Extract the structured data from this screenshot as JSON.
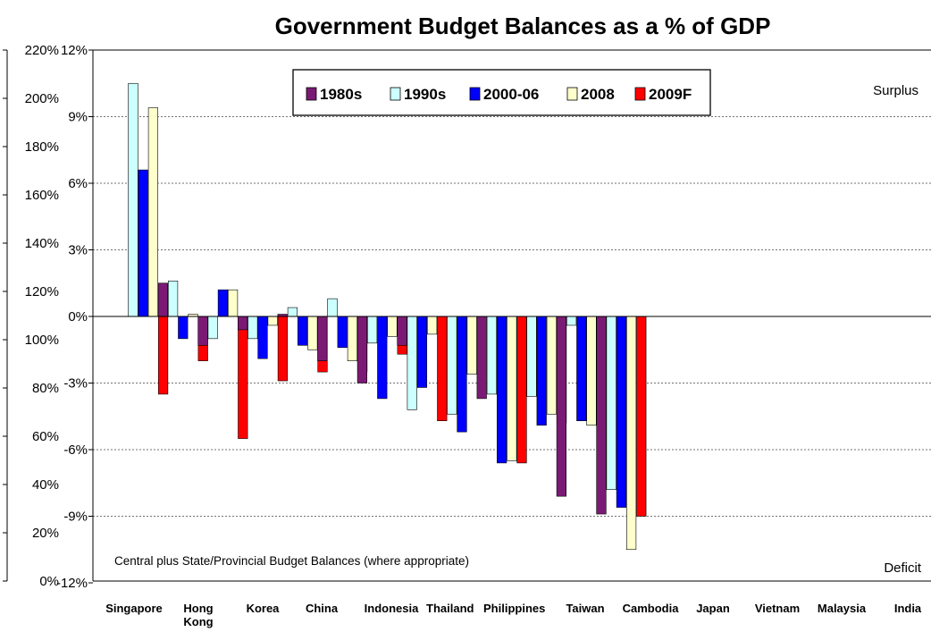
{
  "chart_data": {
    "type": "bar",
    "title": "Government Budget Balances as a % of GDP",
    "categories": [
      "Singapore",
      "Hong Kong",
      "Korea",
      "China",
      "Indonesia",
      "Thailand",
      "Philippines",
      "Taiwan",
      "Cambodia",
      "Japan",
      "Vietnam",
      "Malaysia",
      "India"
    ],
    "series": [
      {
        "name": "1980s",
        "color": "#7b1a74",
        "values": [
          0,
          1.5,
          -1.3,
          -0.6,
          0.1,
          -2.0,
          -3.0,
          -1.3,
          0,
          -3.7,
          0,
          -8.1,
          -8.9
        ]
      },
      {
        "name": "1990s",
        "color": "#ccffff",
        "values": [
          10.5,
          1.6,
          -1.0,
          -1.0,
          0.4,
          0.8,
          -1.2,
          -4.2,
          -4.4,
          -3.5,
          -3.6,
          -0.4,
          -7.8
        ]
      },
      {
        "name": "2000-06",
        "color": "#0000ff",
        "values": [
          6.6,
          -1.0,
          1.2,
          -1.9,
          -1.3,
          -1.4,
          -3.7,
          -3.2,
          -5.2,
          -6.6,
          -4.9,
          -4.7,
          -8.6
        ]
      },
      {
        "name": "2008",
        "color": "#ffffcc",
        "values": [
          9.4,
          0.1,
          1.2,
          -0.4,
          -1.5,
          -2.0,
          -0.9,
          -0.8,
          -2.6,
          -6.5,
          -4.4,
          -4.9,
          -10.5
        ]
      },
      {
        "name": "2009F",
        "color": "#ff0000",
        "values": [
          -3.5,
          -2.0,
          -5.5,
          -2.9,
          -2.5,
          -2.5,
          -1.7,
          -4.7,
          0,
          -6.6,
          -4.8,
          -7.7,
          -9.0
        ]
      }
    ],
    "ylim": [
      -12,
      12
    ],
    "y_ticks": [
      "-12%",
      "-9%",
      "-6%",
      "-3%",
      "0%",
      "3%",
      "6%",
      "9%",
      "12%"
    ],
    "left_axis_ticks": [
      "0%",
      "20%",
      "40%",
      "60%",
      "80%",
      "100%",
      "120%",
      "140%",
      "160%",
      "180%",
      "200%",
      "220%"
    ],
    "grid": true,
    "legend_position": "top-center",
    "annotations": {
      "surplus": "Surplus",
      "deficit": "Deficit",
      "note": "Central plus State/Provincial Budget Balances (where appropriate)"
    }
  }
}
